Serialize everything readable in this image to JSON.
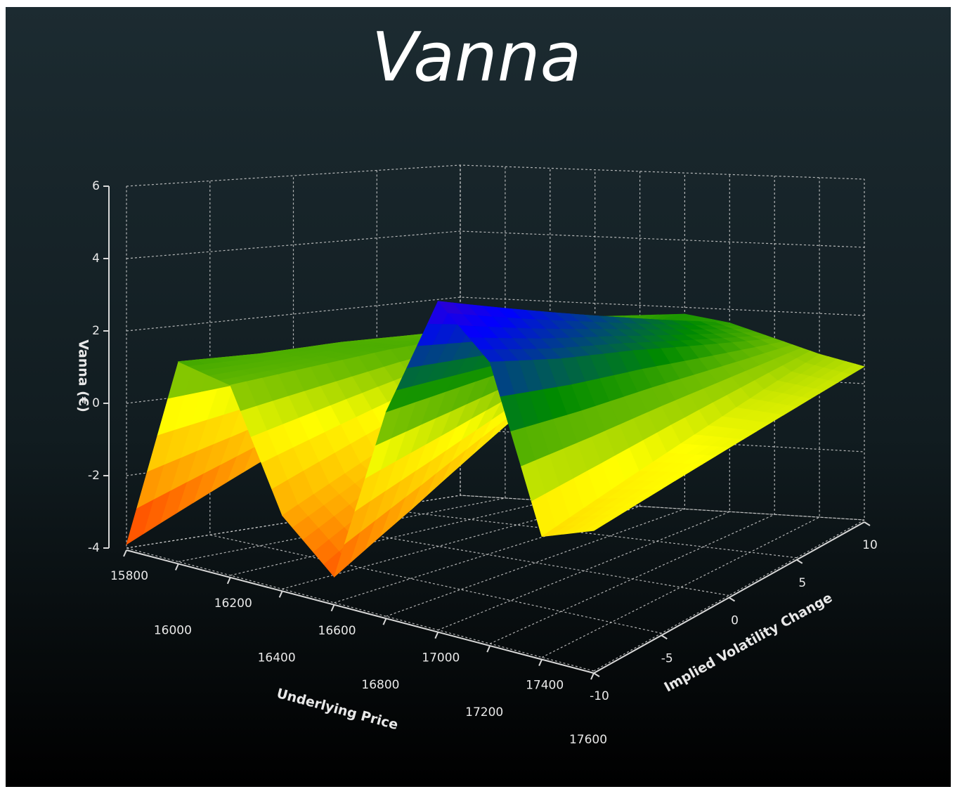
{
  "chart_data": {
    "type": "surface",
    "title": "Vanna",
    "x_label": "Underlying Price",
    "y_label": "Vanna (€)",
    "z_label": "Implied Volatility Change",
    "x": [
      15800,
      16000,
      16200,
      16400,
      16600,
      16800,
      17000,
      17200,
      17400,
      17600
    ],
    "z": [
      -10,
      -5,
      0,
      5,
      10
    ],
    "values": [
      [
        -3.9,
        1.5,
        1.2,
        -2.0,
        -3.3,
        1.5,
        4.8,
        3.5,
        -0.8,
        -0.3
      ],
      [
        -2.8,
        1.4,
        1.3,
        -1.1,
        -2.1,
        1.6,
        4.0,
        2.9,
        -0.4,
        -0.1
      ],
      [
        -1.7,
        1.4,
        1.4,
        -0.2,
        -0.8,
        1.7,
        3.2,
        2.4,
        0.0,
        0.1
      ],
      [
        -0.6,
        1.3,
        1.4,
        0.7,
        0.5,
        1.7,
        2.4,
        1.8,
        0.4,
        0.3
      ],
      [
        0.5,
        1.2,
        1.5,
        1.6,
        1.7,
        1.8,
        1.6,
        1.2,
        0.8,
        0.5
      ]
    ],
    "xlim": [
      15800,
      17600
    ],
    "ylim": [
      -4,
      6
    ],
    "zlim": [
      -10,
      10
    ],
    "xticks": [
      15800,
      16000,
      16200,
      16400,
      16600,
      16800,
      17000,
      17200,
      17400,
      17600
    ],
    "yticks": [
      -4,
      -2,
      0,
      2,
      4,
      6
    ],
    "zticks": [
      -10,
      -5,
      0,
      5,
      10
    ],
    "colors": [
      "#ff2a00",
      "#ffa500",
      "#ffff00",
      "#008a00",
      "#0000ff",
      "#800080"
    ],
    "grid": true
  }
}
